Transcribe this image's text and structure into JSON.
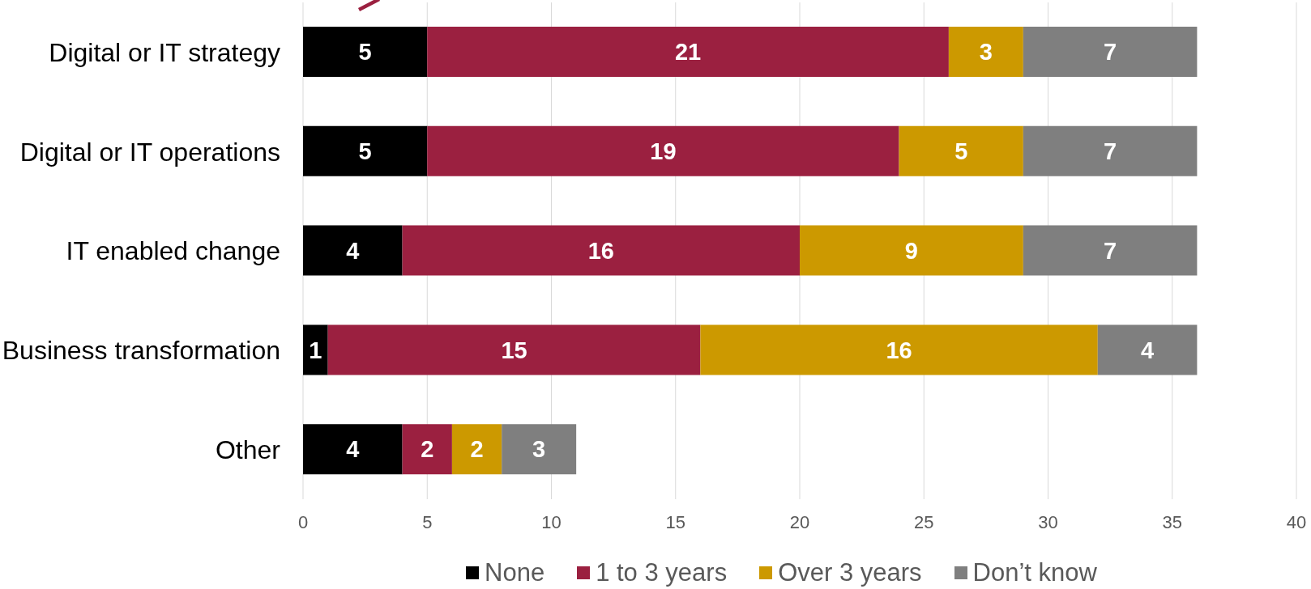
{
  "chart_data": {
    "type": "bar",
    "orientation": "horizontal",
    "stacked": true,
    "categories": [
      "Digital or IT strategy",
      "Digital or IT operations",
      "IT enabled change",
      "Business transformation",
      "Other"
    ],
    "series": [
      {
        "name": "None",
        "color": "#000000",
        "values": [
          5,
          5,
          4,
          1,
          4
        ]
      },
      {
        "name": "1 to 3 years",
        "color": "#9b2040",
        "values": [
          21,
          19,
          16,
          15,
          2
        ]
      },
      {
        "name": "Over 3 years",
        "color": "#cc9900",
        "values": [
          3,
          5,
          9,
          16,
          2
        ]
      },
      {
        "name": "Don’t know",
        "color": "#7f7f7f",
        "values": [
          7,
          7,
          7,
          4,
          3
        ]
      }
    ],
    "xlim": [
      0,
      40
    ],
    "xticks": [
      0,
      5,
      10,
      15,
      20,
      25,
      30,
      35,
      40
    ],
    "grid": "x",
    "legend": "bottom",
    "data_labels": true
  }
}
